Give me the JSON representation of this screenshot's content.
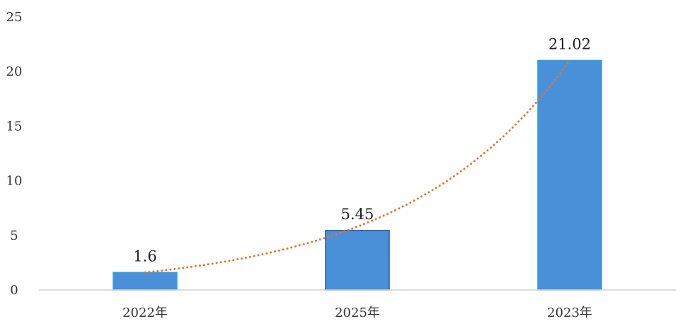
{
  "chart_data": {
    "type": "bar",
    "title": "",
    "xlabel": "",
    "ylabel": "",
    "categories": [
      "2022年",
      "2025年",
      "2023年"
    ],
    "values": [
      1.6,
      5.45,
      21.02
    ],
    "data_labels": [
      "1.6",
      "5.45",
      "21.02"
    ],
    "ylim": [
      0,
      25
    ],
    "yticks": [
      0,
      5,
      10,
      15,
      20,
      25
    ],
    "ytick_labels": [
      "0",
      "5",
      "10",
      "15",
      "20",
      "25"
    ],
    "grid": false,
    "legend": "none",
    "trendline": {
      "type": "exponential",
      "style": "dotted"
    },
    "colors": {
      "bar_fill": "#4a90d9",
      "bar_stroke_outer": "#2aa3e0",
      "bar_stroke_middle": "#1f5aa0",
      "trendline": "#e8702a",
      "axis": "#d0d0d0"
    }
  }
}
